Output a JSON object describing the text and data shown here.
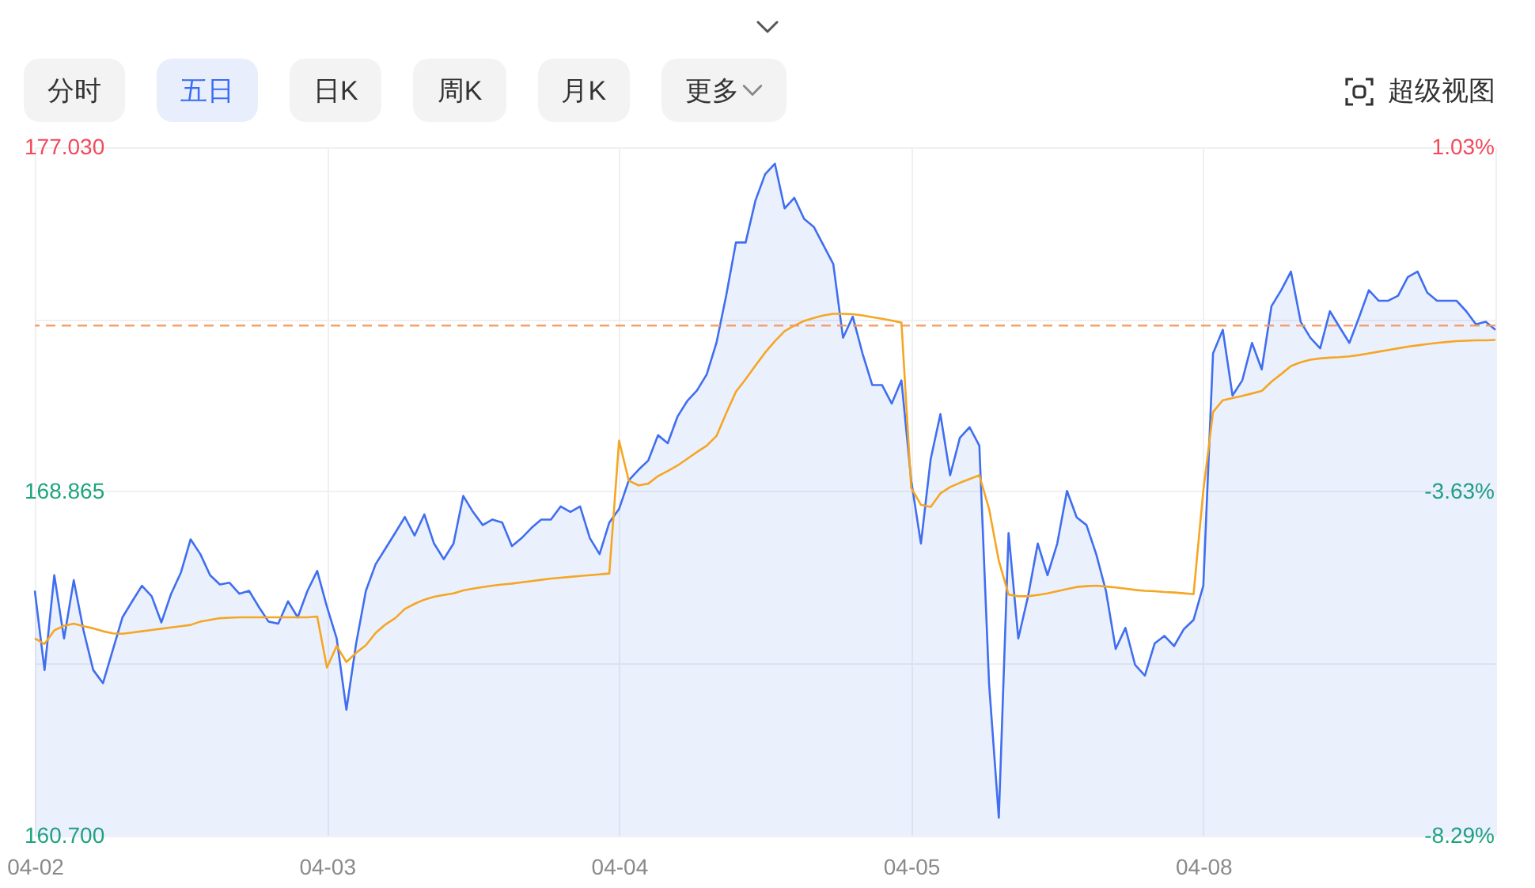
{
  "chart_data": {
    "type": "line",
    "annotations": [
      "分时",
      "五日",
      "日K",
      "周K",
      "月K",
      "更多",
      "超级视图"
    ],
    "categories": [
      "04-02",
      null,
      null,
      null,
      null,
      null,
      null,
      null,
      null,
      null,
      null,
      null,
      null,
      null,
      null,
      null,
      null,
      null,
      null,
      null,
      null,
      null,
      null,
      null,
      null,
      null,
      null,
      null,
      null,
      null,
      "04-03",
      null,
      null,
      null,
      null,
      null,
      null,
      null,
      null,
      null,
      null,
      null,
      null,
      null,
      null,
      null,
      null,
      null,
      null,
      null,
      null,
      null,
      null,
      null,
      null,
      null,
      null,
      null,
      null,
      null,
      "04-04",
      null,
      null,
      null,
      null,
      null,
      null,
      null,
      null,
      null,
      null,
      null,
      null,
      null,
      null,
      null,
      null,
      null,
      null,
      null,
      null,
      null,
      null,
      null,
      null,
      null,
      null,
      null,
      null,
      null,
      "04-05",
      null,
      null,
      null,
      null,
      null,
      null,
      null,
      null,
      null,
      null,
      null,
      null,
      null,
      null,
      null,
      null,
      null,
      null,
      null,
      null,
      null,
      null,
      null,
      null,
      null,
      null,
      null,
      null,
      null,
      "04-08",
      null,
      null,
      null,
      null,
      null,
      null,
      null,
      null,
      null,
      null,
      null,
      null,
      null,
      null,
      null,
      null,
      null,
      null,
      null,
      null,
      null,
      null,
      null,
      null,
      null,
      null,
      null,
      null,
      null,
      null
    ],
    "ylim": [
      160.7,
      177.03
    ],
    "yticks": [
      {
        "value": 160.7,
        "label": "160.700"
      },
      {
        "value": 164.7825,
        "label": null
      },
      {
        "value": 168.865,
        "label": "168.865"
      },
      {
        "value": 172.9475,
        "label": null
      },
      {
        "value": 177.03,
        "label": "177.030"
      }
    ],
    "y2lim": [
      -8.29,
      1.03
    ],
    "y2ticks": [
      {
        "value": -8.29,
        "label": "-8.29%"
      },
      {
        "value": -3.63,
        "label": "-3.63%"
      },
      {
        "value": 1.03,
        "label": "1.03%"
      }
    ],
    "grid": true,
    "ref_lines": [
      {
        "axis": "y",
        "value": 172.8,
        "color": "#f39a62",
        "line_style": "dashed"
      }
    ],
    "series": [
      {
        "type": "area",
        "color": "#3f6ef0",
        "values": [
          166.51,
          164.63,
          166.88,
          165.38,
          166.76,
          165.57,
          164.63,
          164.32,
          165.1,
          165.88,
          166.26,
          166.63,
          166.38,
          165.76,
          166.44,
          166.94,
          167.73,
          167.38,
          166.88,
          166.66,
          166.7,
          166.44,
          166.51,
          166.13,
          165.78,
          165.73,
          166.26,
          165.88,
          166.51,
          166.98,
          166.13,
          165.38,
          163.69,
          165.26,
          166.51,
          167.14,
          167.51,
          167.88,
          168.26,
          167.82,
          168.32,
          167.63,
          167.26,
          167.63,
          168.76,
          168.38,
          168.07,
          168.2,
          168.13,
          167.57,
          167.76,
          168.0,
          168.2,
          168.2,
          168.51,
          168.38,
          168.51,
          167.76,
          167.38,
          168.13,
          168.45,
          169.13,
          169.38,
          169.6,
          170.2,
          170.01,
          170.64,
          171.01,
          171.26,
          171.64,
          172.39,
          173.51,
          174.77,
          174.77,
          175.76,
          176.39,
          176.64,
          175.58,
          175.83,
          175.33,
          175.14,
          174.7,
          174.26,
          172.51,
          173.01,
          172.14,
          171.39,
          171.39,
          170.95,
          171.5,
          169.13,
          167.63,
          169.63,
          170.7,
          169.25,
          170.14,
          170.39,
          169.95,
          164.3,
          161.13,
          167.88,
          165.38,
          166.38,
          167.63,
          166.88,
          167.63,
          168.88,
          168.25,
          168.07,
          167.38,
          166.51,
          165.13,
          165.63,
          164.75,
          164.5,
          165.26,
          165.44,
          165.2,
          165.6,
          165.82,
          166.63,
          172.14,
          172.7,
          171.14,
          171.5,
          172.39,
          171.76,
          173.26,
          173.64,
          174.08,
          172.89,
          172.51,
          172.26,
          173.14,
          172.76,
          172.39,
          173.0,
          173.64,
          173.39,
          173.39,
          173.51,
          173.95,
          174.08,
          173.58,
          173.39,
          173.39,
          173.39,
          173.14,
          172.83,
          172.89,
          172.7
        ]
      },
      {
        "color": "#f5a623",
        "values": [
          165.38,
          165.25,
          165.57,
          165.68,
          165.73,
          165.67,
          165.62,
          165.55,
          165.5,
          165.49,
          165.52,
          165.55,
          165.58,
          165.61,
          165.64,
          165.67,
          165.7,
          165.78,
          165.82,
          165.86,
          165.87,
          165.88,
          165.88,
          165.88,
          165.88,
          165.88,
          165.88,
          165.88,
          165.88,
          165.9,
          164.69,
          165.2,
          164.82,
          165.04,
          165.22,
          165.51,
          165.71,
          165.86,
          166.08,
          166.2,
          166.3,
          166.37,
          166.41,
          166.45,
          166.52,
          166.56,
          166.6,
          166.63,
          166.66,
          166.68,
          166.71,
          166.74,
          166.77,
          166.8,
          166.82,
          166.84,
          166.86,
          166.88,
          166.9,
          166.92,
          170.07,
          169.12,
          169.01,
          169.05,
          169.23,
          169.35,
          169.48,
          169.64,
          169.8,
          169.95,
          170.18,
          170.72,
          171.23,
          171.53,
          171.85,
          172.16,
          172.43,
          172.67,
          172.8,
          172.91,
          172.98,
          173.04,
          173.08,
          173.08,
          173.07,
          173.04,
          173.0,
          172.96,
          172.92,
          172.87,
          168.95,
          168.55,
          168.5,
          168.82,
          168.97,
          169.07,
          169.16,
          169.25,
          168.45,
          167.22,
          166.42,
          166.38,
          166.38,
          166.41,
          166.45,
          166.5,
          166.55,
          166.6,
          166.62,
          166.63,
          166.61,
          166.59,
          166.56,
          166.53,
          166.51,
          166.5,
          166.48,
          166.47,
          166.45,
          166.43,
          168.88,
          170.75,
          171.03,
          171.08,
          171.13,
          171.19,
          171.25,
          171.47,
          171.65,
          171.84,
          171.93,
          171.99,
          172.02,
          172.04,
          172.05,
          172.07,
          172.1,
          172.14,
          172.18,
          172.22,
          172.26,
          172.3,
          172.33,
          172.36,
          172.39,
          172.41,
          172.43,
          172.44,
          172.45,
          172.45,
          172.46
        ]
      }
    ]
  }
}
